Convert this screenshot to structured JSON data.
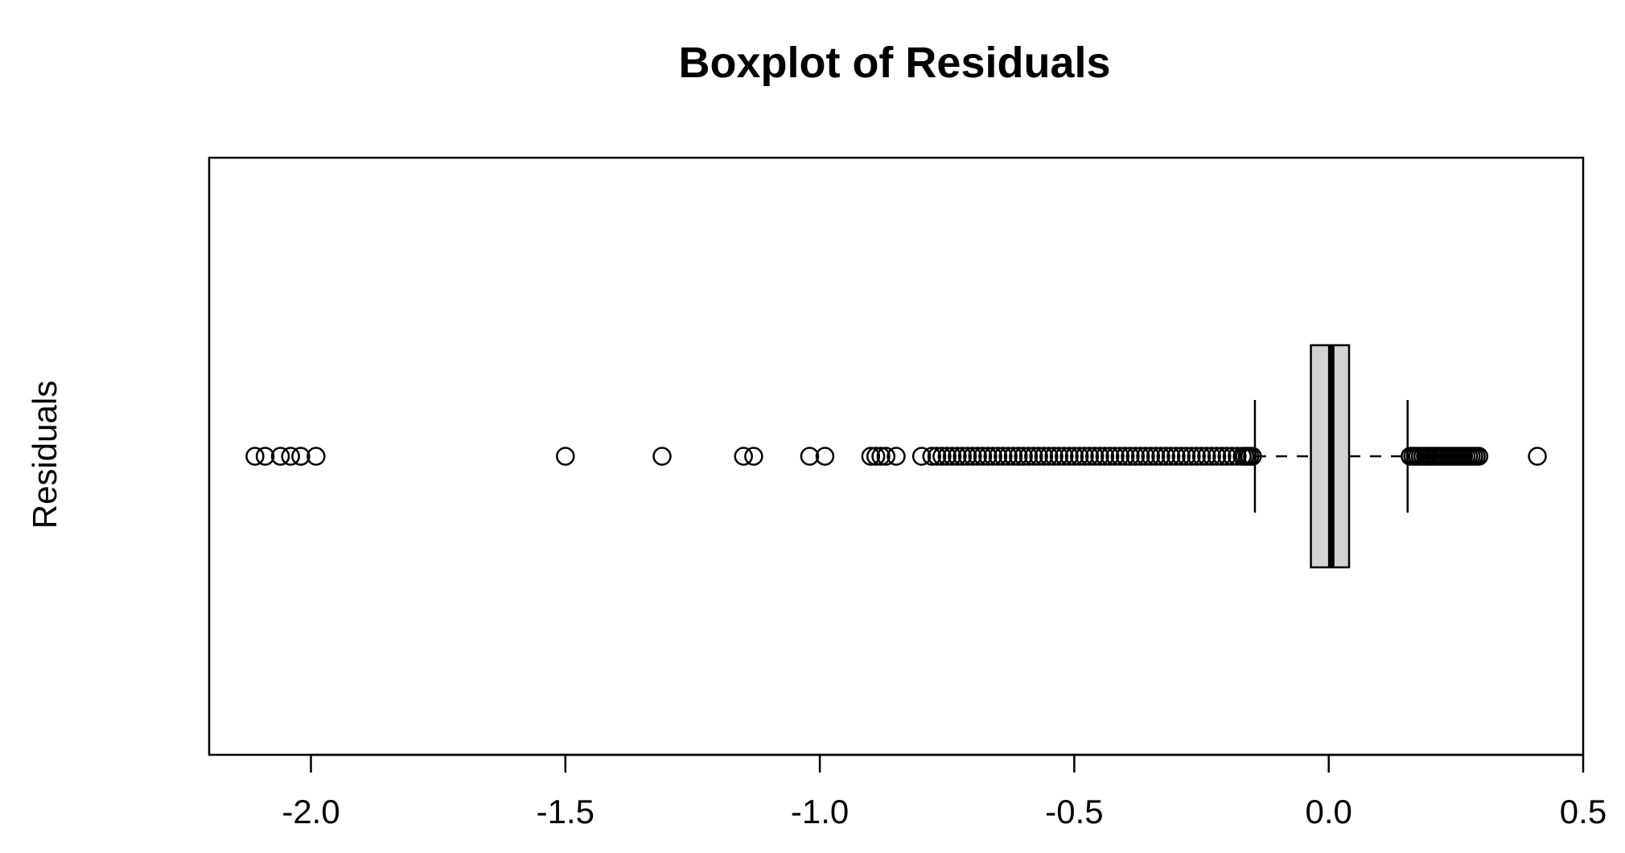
{
  "chart_data": {
    "type": "boxplot",
    "orientation": "horizontal",
    "title": "Boxplot of Residuals",
    "ylabel": "Residuals",
    "xlabel": "",
    "xlim": [
      -2.2,
      0.5
    ],
    "x_ticks": [
      -2.0,
      -1.5,
      -1.0,
      -0.5,
      0.0,
      0.5
    ],
    "x_tick_labels": [
      "-2.0",
      "-1.5",
      "-1.0",
      "-0.5",
      "0.0",
      "0.5"
    ],
    "grid": false,
    "legend": "none",
    "box": {
      "lower_whisker": -0.145,
      "q1": -0.035,
      "median": 0.005,
      "q3": 0.04,
      "upper_whisker": 0.155,
      "fill_color": "#d3d3d3"
    },
    "outliers_low": [
      -2.11,
      -2.09,
      -2.06,
      -2.04,
      -2.02,
      -1.99,
      -1.5,
      -1.31,
      -1.15,
      -1.13,
      -1.02,
      -0.99,
      -0.9,
      -0.89,
      -0.88,
      -0.87,
      -0.85,
      -0.8,
      -0.78,
      -0.77,
      -0.76,
      -0.75,
      -0.74,
      -0.73,
      -0.72,
      -0.71,
      -0.7,
      -0.69,
      -0.68,
      -0.67,
      -0.66,
      -0.65,
      -0.64,
      -0.63,
      -0.62,
      -0.61,
      -0.6,
      -0.59,
      -0.58,
      -0.57,
      -0.56,
      -0.55,
      -0.54,
      -0.53,
      -0.52,
      -0.51,
      -0.5,
      -0.49,
      -0.48,
      -0.47,
      -0.46,
      -0.45,
      -0.44,
      -0.43,
      -0.42,
      -0.41,
      -0.4,
      -0.39,
      -0.38,
      -0.37,
      -0.36,
      -0.35,
      -0.34,
      -0.33,
      -0.32,
      -0.31,
      -0.3,
      -0.29,
      -0.28,
      -0.27,
      -0.26,
      -0.25,
      -0.24,
      -0.23,
      -0.22,
      -0.21,
      -0.2,
      -0.19,
      -0.18,
      -0.17,
      -0.165,
      -0.16,
      -0.155,
      -0.15
    ],
    "outliers_high": [
      0.16,
      0.165,
      0.17,
      0.175,
      0.18,
      0.185,
      0.19,
      0.195,
      0.2,
      0.205,
      0.21,
      0.215,
      0.22,
      0.225,
      0.23,
      0.235,
      0.24,
      0.245,
      0.25,
      0.255,
      0.26,
      0.265,
      0.27,
      0.275,
      0.28,
      0.285,
      0.29,
      0.295,
      0.41
    ]
  }
}
